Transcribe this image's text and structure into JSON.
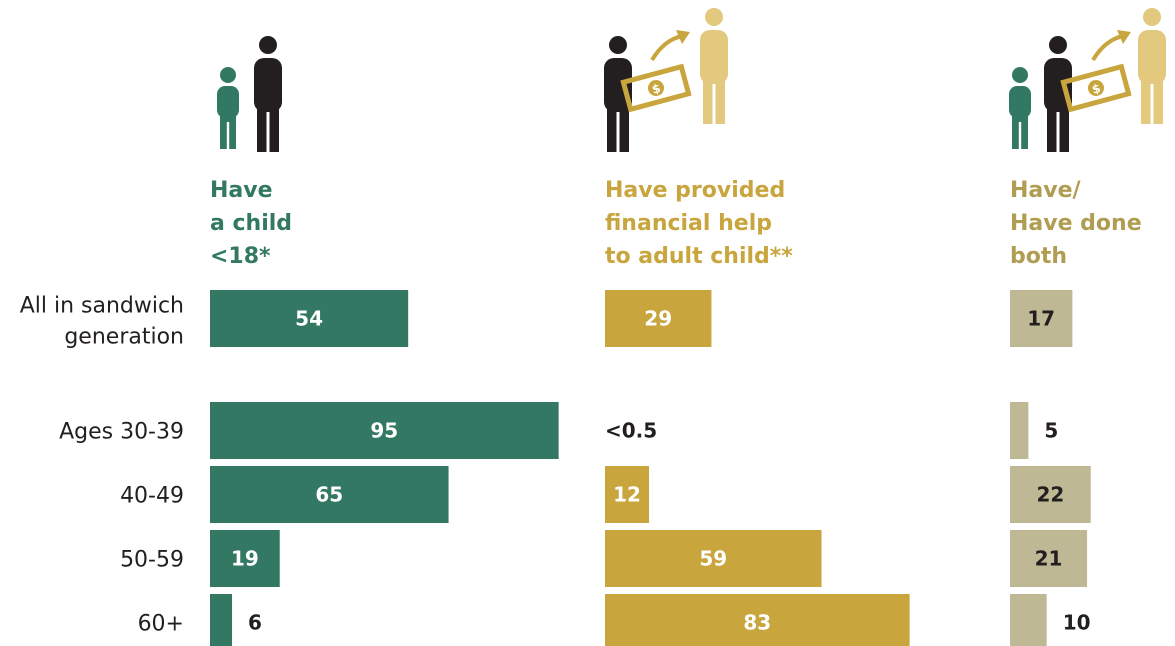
{
  "colors": {
    "child": "#337863",
    "help": "#c8a53d",
    "both": "#beb994",
    "icon_adult_child": "#e2c97e",
    "dark": "#231f20",
    "white": "#ffffff"
  },
  "icons": [
    "child-figure-icon",
    "adult-figure-icon",
    "money-bill-icon",
    "arrow-icon",
    "adult-child-figure-icon"
  ],
  "chart_data": {
    "type": "bar",
    "orientation": "horizontal",
    "categories": [
      "All in sandwich generation",
      "Ages 30-39",
      "40-49",
      "50-59",
      "60+"
    ],
    "series": [
      {
        "name": "Have a child <18*",
        "header_lines": [
          "Have",
          "a child",
          "<18*"
        ],
        "values": [
          54,
          95,
          65,
          19,
          6
        ],
        "labels": [
          "54",
          "95",
          "65",
          "19",
          "6"
        ]
      },
      {
        "name": "Have provided financial help to adult child**",
        "header_lines": [
          "Have provided",
          "financial help",
          "to adult child**"
        ],
        "values": [
          29,
          0,
          12,
          59,
          83
        ],
        "labels": [
          "29",
          "<0.5",
          "12",
          "59",
          "83"
        ]
      },
      {
        "name": "Have/Have done both",
        "header_lines": [
          "Have/",
          "Have done",
          "both"
        ],
        "values": [
          17,
          5,
          22,
          21,
          10
        ],
        "labels": [
          "17",
          "5",
          "22",
          "21",
          "10"
        ]
      }
    ],
    "xlim": [
      0,
      100
    ],
    "grid": false,
    "legend": "none"
  }
}
